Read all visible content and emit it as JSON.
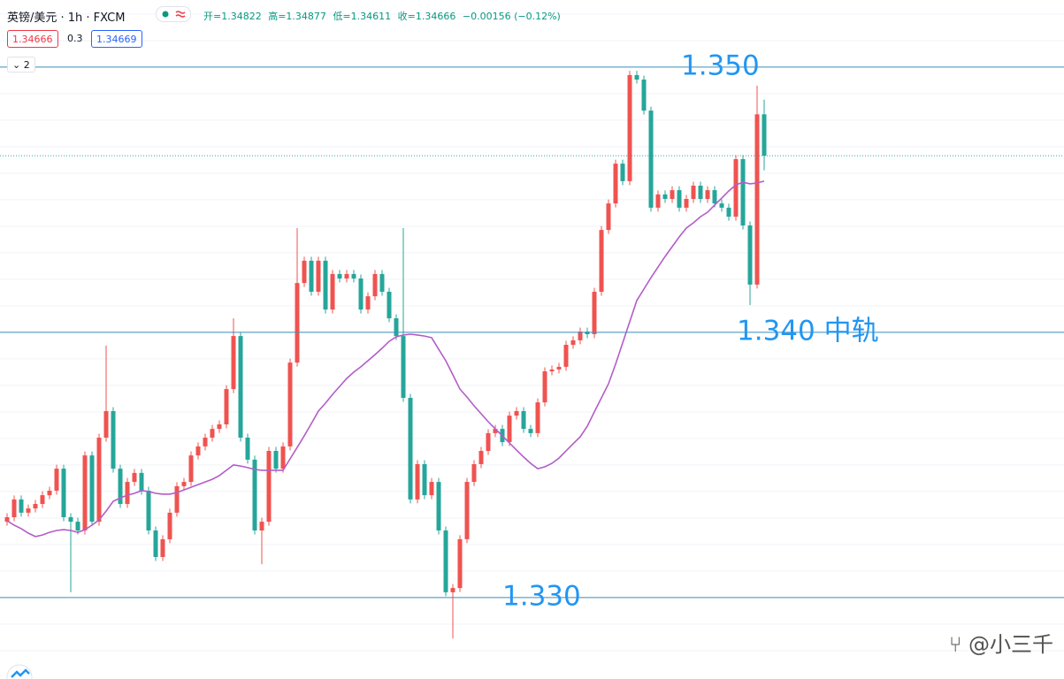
{
  "header": {
    "symbol": "英镑/美元 · 1h · FXCM",
    "open": "开=1.34822",
    "high": "高=1.34877",
    "low": "低=1.34611",
    "close": "收=1.34666",
    "change": "−0.00156 (−0.12%)",
    "bid": "1.34666",
    "spread": "0.3",
    "ask": "1.34669",
    "indicator_count": "2"
  },
  "watermark": "@小三千",
  "chart_data": {
    "type": "candlestick",
    "up_color": "#ef5350",
    "down_color": "#26a69a",
    "ylim": [
      1.32693,
      1.35253
    ],
    "yticks": [
      1.328,
      1.329,
      1.33,
      1.331,
      1.332,
      1.333,
      1.334,
      1.335,
      1.336,
      1.337,
      1.338,
      1.339,
      1.34,
      1.341,
      1.342,
      1.343,
      1.344,
      1.345,
      1.346,
      1.347,
      1.348,
      1.349,
      1.35,
      1.351,
      1.352
    ],
    "grid": true,
    "candles": {
      "open": [
        1.33286,
        1.33303,
        1.3337,
        1.3332,
        1.33336,
        1.33353,
        1.33386,
        1.33403,
        1.33486,
        1.33303,
        1.33286,
        1.33253,
        1.33536,
        1.33286,
        1.33603,
        1.33703,
        1.33486,
        1.33353,
        1.33436,
        1.3347,
        1.33403,
        1.33253,
        1.33153,
        1.3322,
        1.3332,
        1.3342,
        1.33436,
        1.33536,
        1.3357,
        1.33603,
        1.33636,
        1.33653,
        1.33786,
        1.33986,
        1.33603,
        1.3352,
        1.33253,
        1.33286,
        1.33553,
        1.33486,
        1.3357,
        1.33886,
        1.34186,
        1.3427,
        1.34153,
        1.3427,
        1.34086,
        1.3422,
        1.34203,
        1.3422,
        1.34203,
        1.34086,
        1.34136,
        1.3422,
        1.34153,
        1.34053,
        1.33986,
        1.33753,
        1.3337,
        1.33503,
        1.33386,
        1.33436,
        1.33253,
        1.3302,
        1.33036,
        1.3322,
        1.33436,
        1.33503,
        1.33553,
        1.3362,
        1.33636,
        1.33586,
        1.33686,
        1.33703,
        1.33636,
        1.3362,
        1.33736,
        1.33853,
        1.3386,
        1.3387,
        1.33953,
        1.3397,
        1.34003,
        1.33993,
        1.34153,
        1.34386,
        1.34486,
        1.34636,
        1.3457,
        1.3497,
        1.34953,
        1.34836,
        1.3447,
        1.3452,
        1.34503,
        1.34536,
        1.3447,
        1.34503,
        1.34553,
        1.34503,
        1.34536,
        1.34486,
        1.3447,
        1.34436,
        1.34653,
        1.34403,
        1.3418,
        1.34822
      ],
      "high": [
        1.33318,
        1.33385,
        1.33385,
        1.33351,
        1.33368,
        1.33401,
        1.33418,
        1.33501,
        1.33501,
        1.33318,
        1.33301,
        1.33551,
        1.33551,
        1.33618,
        1.3395,
        1.33718,
        1.33501,
        1.33451,
        1.33485,
        1.33485,
        1.33418,
        1.33268,
        1.33235,
        1.33335,
        1.33435,
        1.33451,
        1.33551,
        1.33585,
        1.33618,
        1.33651,
        1.33668,
        1.33801,
        1.34053,
        1.34001,
        1.33618,
        1.33535,
        1.33301,
        1.33568,
        1.33568,
        1.33585,
        1.33901,
        1.34393,
        1.34285,
        1.34285,
        1.34285,
        1.34285,
        1.34235,
        1.34235,
        1.34235,
        1.34235,
        1.34218,
        1.34151,
        1.34235,
        1.34235,
        1.34168,
        1.34068,
        1.34393,
        1.33768,
        1.33518,
        1.33518,
        1.33451,
        1.33451,
        1.33268,
        1.33051,
        1.33235,
        1.33451,
        1.33518,
        1.33568,
        1.33635,
        1.33651,
        1.33651,
        1.33701,
        1.33718,
        1.33718,
        1.33651,
        1.33751,
        1.33868,
        1.33875,
        1.33885,
        1.33968,
        1.33985,
        1.34018,
        1.34018,
        1.34168,
        1.34401,
        1.34501,
        1.34651,
        1.34651,
        1.34986,
        1.34986,
        1.34968,
        1.34851,
        1.34535,
        1.34535,
        1.34551,
        1.34551,
        1.34518,
        1.34568,
        1.34568,
        1.34551,
        1.34551,
        1.34501,
        1.34485,
        1.34668,
        1.34668,
        1.34418,
        1.3493,
        1.34877
      ],
      "low": [
        1.33271,
        1.33288,
        1.33305,
        1.33305,
        1.33321,
        1.33338,
        1.33371,
        1.33388,
        1.33288,
        1.3302,
        1.33238,
        1.33238,
        1.33271,
        1.33271,
        1.33588,
        1.33471,
        1.33338,
        1.33338,
        1.33421,
        1.33388,
        1.33238,
        1.33138,
        1.33138,
        1.33205,
        1.33305,
        1.33405,
        1.33421,
        1.33521,
        1.33555,
        1.33588,
        1.33621,
        1.33638,
        1.33771,
        1.33588,
        1.33505,
        1.33238,
        1.33126,
        1.33271,
        1.33471,
        1.33471,
        1.33555,
        1.33871,
        1.34171,
        1.34138,
        1.34138,
        1.34071,
        1.34071,
        1.34188,
        1.34188,
        1.34188,
        1.34071,
        1.34071,
        1.34121,
        1.34138,
        1.34038,
        1.33971,
        1.33738,
        1.33355,
        1.33355,
        1.33371,
        1.33371,
        1.33238,
        1.33005,
        1.32846,
        1.33021,
        1.33205,
        1.33421,
        1.33488,
        1.33538,
        1.33605,
        1.33571,
        1.33571,
        1.33671,
        1.33621,
        1.33605,
        1.33605,
        1.33721,
        1.33838,
        1.33845,
        1.33855,
        1.33938,
        1.33955,
        1.33978,
        1.33978,
        1.34138,
        1.34371,
        1.34471,
        1.34555,
        1.34555,
        1.34938,
        1.34821,
        1.34455,
        1.34455,
        1.34488,
        1.34488,
        1.34455,
        1.34455,
        1.34488,
        1.34488,
        1.34488,
        1.34471,
        1.34455,
        1.34421,
        1.34421,
        1.34388,
        1.34103,
        1.34165,
        1.34611
      ],
      "close": [
        1.33303,
        1.3337,
        1.3332,
        1.33336,
        1.33353,
        1.33386,
        1.33403,
        1.33486,
        1.33303,
        1.33286,
        1.33253,
        1.33536,
        1.33286,
        1.33603,
        1.33703,
        1.33486,
        1.33353,
        1.33436,
        1.3347,
        1.33403,
        1.33253,
        1.33153,
        1.3322,
        1.3332,
        1.3342,
        1.33436,
        1.33536,
        1.3357,
        1.33603,
        1.33636,
        1.33653,
        1.33786,
        1.33986,
        1.33603,
        1.3352,
        1.33253,
        1.33286,
        1.33553,
        1.33486,
        1.3357,
        1.33886,
        1.34186,
        1.3427,
        1.34153,
        1.3427,
        1.34086,
        1.3422,
        1.34203,
        1.3422,
        1.34203,
        1.34086,
        1.34136,
        1.3422,
        1.34153,
        1.34053,
        1.33986,
        1.33753,
        1.3337,
        1.33503,
        1.33386,
        1.33436,
        1.33253,
        1.3302,
        1.33036,
        1.3322,
        1.33436,
        1.33503,
        1.33553,
        1.3362,
        1.33636,
        1.33586,
        1.33686,
        1.33703,
        1.33636,
        1.3362,
        1.33736,
        1.33853,
        1.3386,
        1.3387,
        1.33953,
        1.3397,
        1.34003,
        1.33993,
        1.34153,
        1.34386,
        1.34486,
        1.34636,
        1.3457,
        1.3497,
        1.34953,
        1.34836,
        1.3447,
        1.3452,
        1.34503,
        1.34536,
        1.3447,
        1.34503,
        1.34553,
        1.34503,
        1.34536,
        1.34486,
        1.3447,
        1.34436,
        1.34653,
        1.34403,
        1.3418,
        1.34822,
        1.34666
      ]
    },
    "ma": {
      "color": "#b45cc8",
      "values": [
        1.3329,
        1.33273,
        1.3326,
        1.33243,
        1.3323,
        1.33236,
        1.33246,
        1.33253,
        1.33256,
        1.33253,
        1.33246,
        1.33256,
        1.33273,
        1.33293,
        1.33326,
        1.33363,
        1.33376,
        1.33386,
        1.33393,
        1.33403,
        1.334,
        1.33393,
        1.3339,
        1.3339,
        1.33396,
        1.33406,
        1.33416,
        1.33426,
        1.33436,
        1.33446,
        1.3346,
        1.3348,
        1.335,
        1.33496,
        1.3349,
        1.33483,
        1.3348,
        1.3348,
        1.3348,
        1.3348,
        1.33523,
        1.33566,
        1.3361,
        1.33656,
        1.33703,
        1.33733,
        1.33766,
        1.33796,
        1.33826,
        1.3385,
        1.3387,
        1.33893,
        1.33916,
        1.3394,
        1.33966,
        1.33983,
        1.3399,
        1.33993,
        1.3399,
        1.33986,
        1.3398,
        1.33936,
        1.33893,
        1.3384,
        1.33786,
        1.33756,
        1.33723,
        1.33693,
        1.33663,
        1.33636,
        1.3361,
        1.33583,
        1.33556,
        1.3353,
        1.33506,
        1.33486,
        1.33493,
        1.33506,
        1.33526,
        1.33553,
        1.3358,
        1.33606,
        1.33646,
        1.337,
        1.33753,
        1.33806,
        1.3388,
        1.3396,
        1.3404,
        1.3412,
        1.34163,
        1.34206,
        1.34246,
        1.34286,
        1.34323,
        1.3436,
        1.34393,
        1.34413,
        1.34436,
        1.34453,
        1.3448,
        1.34506,
        1.34533,
        1.34556,
        1.34566,
        1.3456,
        1.34563,
        1.3457
      ]
    },
    "hlines": [
      {
        "value": 1.35,
        "label": "1.350"
      },
      {
        "value": 1.34,
        "label": "1.340 中轨"
      },
      {
        "value": 1.33,
        "label": "1.330"
      }
    ],
    "hline_color": "#3d8fb8"
  }
}
